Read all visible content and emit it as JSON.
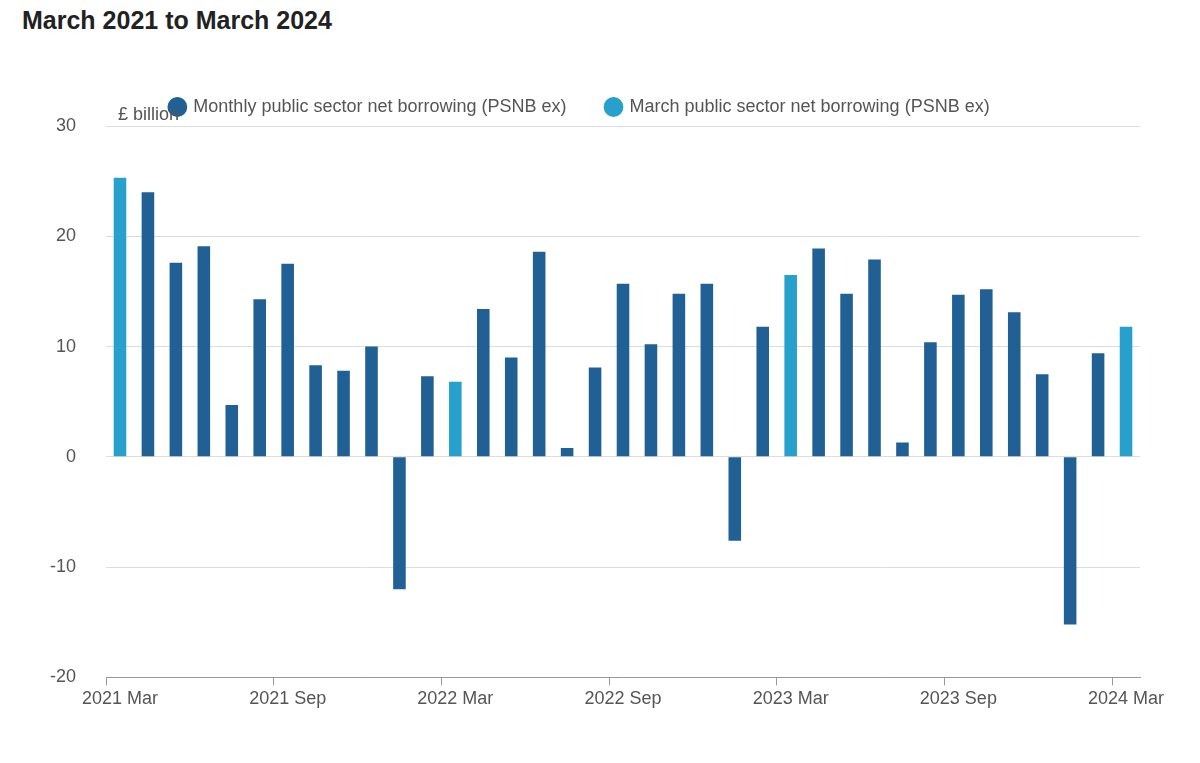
{
  "chart_data": {
    "type": "bar",
    "title": "March 2021 to March 2024",
    "ylabel": "£ billion",
    "categories": [
      "2021 Mar",
      null,
      null,
      null,
      null,
      null,
      "2021 Sep",
      null,
      null,
      null,
      null,
      null,
      "2022 Mar",
      null,
      null,
      null,
      null,
      null,
      "2022 Sep",
      null,
      null,
      null,
      null,
      null,
      "2023 Mar",
      null,
      null,
      null,
      null,
      null,
      "2023 Sep",
      null,
      null,
      null,
      null,
      null,
      "2024 Mar"
    ],
    "series": [
      {
        "name": "Monthly public sector net borrowing (PSNB ex)",
        "color": "#206095",
        "values": [
          null,
          24.0,
          17.6,
          19.1,
          4.7,
          14.3,
          17.5,
          8.3,
          7.8,
          10.0,
          -12.0,
          7.3,
          null,
          13.4,
          9.0,
          18.6,
          0.8,
          8.1,
          15.7,
          10.2,
          14.8,
          15.7,
          -7.6,
          11.8,
          null,
          18.9,
          14.8,
          17.9,
          1.3,
          10.4,
          14.7,
          15.2,
          13.1,
          7.5,
          -15.2,
          9.4,
          null
        ]
      },
      {
        "name": "March public sector net borrowing (PSNB ex)",
        "color": "#27a0cc",
        "values": [
          25.3,
          null,
          null,
          null,
          null,
          null,
          null,
          null,
          null,
          null,
          null,
          null,
          6.8,
          null,
          null,
          null,
          null,
          null,
          null,
          null,
          null,
          null,
          null,
          null,
          16.5,
          null,
          null,
          null,
          null,
          null,
          null,
          null,
          null,
          null,
          null,
          null,
          11.8
        ]
      }
    ],
    "ylim": [
      -20,
      30
    ],
    "yticks": [
      -20,
      -10,
      0,
      10,
      20,
      30
    ],
    "grid": true,
    "legend": "top"
  }
}
